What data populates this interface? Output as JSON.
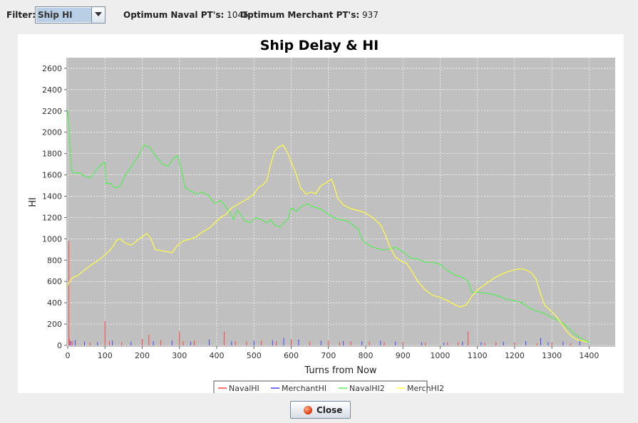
{
  "filter": {
    "label": "Filter:",
    "selected": "Ship HI"
  },
  "optimum": {
    "naval_label": "Optimum Naval PT's:",
    "naval_value": "1046",
    "merchant_label": "Optimum Merchant PT's:",
    "merchant_value": "937"
  },
  "close_button": {
    "label": "Close",
    "icon": "close-icon"
  },
  "chart_data": {
    "type": "line",
    "title": "Ship Delay & HI",
    "xlabel": "Turns from Now",
    "ylabel": "HI",
    "xlim": [
      0,
      1470
    ],
    "ylim": [
      0,
      2700
    ],
    "xticks": [
      0,
      100,
      200,
      300,
      400,
      500,
      600,
      700,
      800,
      900,
      1000,
      1100,
      1200,
      1300,
      1400
    ],
    "yticks": [
      0,
      200,
      400,
      600,
      800,
      1000,
      1200,
      1400,
      1600,
      1800,
      2000,
      2200,
      2400,
      2600
    ],
    "grid": true,
    "legend_position": "bottom",
    "plot_background": "#c0c0c0",
    "series": [
      {
        "name": "NavalHI",
        "color": "#ff4444",
        "spikes": [
          [
            3,
            980
          ],
          [
            5,
            60
          ],
          [
            12,
            40
          ],
          [
            60,
            30
          ],
          [
            100,
            230
          ],
          [
            112,
            40
          ],
          [
            145,
            30
          ],
          [
            200,
            60
          ],
          [
            218,
            100
          ],
          [
            250,
            50
          ],
          [
            300,
            130
          ],
          [
            310,
            40
          ],
          [
            340,
            45
          ],
          [
            420,
            130
          ],
          [
            450,
            40
          ],
          [
            480,
            35
          ],
          [
            520,
            45
          ],
          [
            560,
            40
          ],
          [
            600,
            55
          ],
          [
            650,
            35
          ],
          [
            700,
            45
          ],
          [
            730,
            30
          ],
          [
            760,
            40
          ],
          [
            810,
            35
          ],
          [
            850,
            30
          ],
          [
            900,
            30
          ],
          [
            960,
            25
          ],
          [
            1020,
            30
          ],
          [
            1048,
            30
          ],
          [
            1075,
            130
          ],
          [
            1120,
            25
          ],
          [
            1150,
            30
          ],
          [
            1200,
            25
          ],
          [
            1260,
            20
          ],
          [
            1300,
            25
          ],
          [
            1350,
            20
          ]
        ]
      },
      {
        "name": "MerchantHI",
        "color": "#4444ff",
        "spikes": [
          [
            8,
            40
          ],
          [
            20,
            50
          ],
          [
            45,
            35
          ],
          [
            80,
            30
          ],
          [
            120,
            45
          ],
          [
            170,
            35
          ],
          [
            230,
            40
          ],
          [
            280,
            45
          ],
          [
            330,
            35
          ],
          [
            380,
            55
          ],
          [
            440,
            40
          ],
          [
            500,
            45
          ],
          [
            550,
            50
          ],
          [
            580,
            70
          ],
          [
            620,
            55
          ],
          [
            680,
            45
          ],
          [
            740,
            40
          ],
          [
            790,
            40
          ],
          [
            840,
            45
          ],
          [
            880,
            35
          ],
          [
            950,
            30
          ],
          [
            1010,
            25
          ],
          [
            1060,
            35
          ],
          [
            1110,
            30
          ],
          [
            1170,
            35
          ],
          [
            1230,
            40
          ],
          [
            1270,
            70
          ],
          [
            1290,
            30
          ],
          [
            1330,
            35
          ],
          [
            1375,
            45
          ]
        ]
      },
      {
        "name": "NavalHI2",
        "color": "#55ee55",
        "points": [
          [
            0,
            2200
          ],
          [
            5,
            1900
          ],
          [
            10,
            1650
          ],
          [
            15,
            1620
          ],
          [
            30,
            1620
          ],
          [
            45,
            1590
          ],
          [
            60,
            1570
          ],
          [
            75,
            1640
          ],
          [
            90,
            1700
          ],
          [
            100,
            1720
          ],
          [
            103,
            1520
          ],
          [
            115,
            1520
          ],
          [
            125,
            1480
          ],
          [
            140,
            1490
          ],
          [
            155,
            1600
          ],
          [
            175,
            1700
          ],
          [
            190,
            1780
          ],
          [
            205,
            1880
          ],
          [
            220,
            1860
          ],
          [
            240,
            1760
          ],
          [
            255,
            1700
          ],
          [
            270,
            1680
          ],
          [
            285,
            1760
          ],
          [
            295,
            1780
          ],
          [
            305,
            1650
          ],
          [
            315,
            1480
          ],
          [
            330,
            1450
          ],
          [
            345,
            1420
          ],
          [
            360,
            1440
          ],
          [
            380,
            1400
          ],
          [
            395,
            1330
          ],
          [
            410,
            1360
          ],
          [
            420,
            1320
          ],
          [
            435,
            1250
          ],
          [
            445,
            1180
          ],
          [
            455,
            1270
          ],
          [
            465,
            1230
          ],
          [
            475,
            1170
          ],
          [
            490,
            1150
          ],
          [
            505,
            1200
          ],
          [
            520,
            1180
          ],
          [
            535,
            1150
          ],
          [
            545,
            1180
          ],
          [
            555,
            1130
          ],
          [
            570,
            1110
          ],
          [
            580,
            1150
          ],
          [
            592,
            1190
          ],
          [
            600,
            1290
          ],
          [
            615,
            1260
          ],
          [
            630,
            1310
          ],
          [
            645,
            1330
          ],
          [
            660,
            1300
          ],
          [
            680,
            1280
          ],
          [
            700,
            1230
          ],
          [
            715,
            1200
          ],
          [
            730,
            1180
          ],
          [
            750,
            1170
          ],
          [
            765,
            1130
          ],
          [
            780,
            1090
          ],
          [
            790,
            1000
          ],
          [
            800,
            960
          ],
          [
            820,
            920
          ],
          [
            840,
            900
          ],
          [
            860,
            900
          ],
          [
            880,
            920
          ],
          [
            900,
            880
          ],
          [
            920,
            820
          ],
          [
            940,
            810
          ],
          [
            960,
            780
          ],
          [
            980,
            780
          ],
          [
            1000,
            760
          ],
          [
            1020,
            700
          ],
          [
            1040,
            660
          ],
          [
            1060,
            640
          ],
          [
            1075,
            600
          ],
          [
            1085,
            500
          ],
          [
            1100,
            500
          ],
          [
            1120,
            490
          ],
          [
            1140,
            480
          ],
          [
            1160,
            460
          ],
          [
            1180,
            430
          ],
          [
            1200,
            420
          ],
          [
            1220,
            400
          ],
          [
            1240,
            350
          ],
          [
            1260,
            320
          ],
          [
            1280,
            300
          ],
          [
            1300,
            260
          ],
          [
            1320,
            230
          ],
          [
            1340,
            180
          ],
          [
            1360,
            110
          ],
          [
            1380,
            60
          ],
          [
            1400,
            30
          ]
        ]
      },
      {
        "name": "MerchHI2",
        "color": "#ffff44",
        "points": [
          [
            0,
            560
          ],
          [
            5,
            600
          ],
          [
            15,
            640
          ],
          [
            25,
            650
          ],
          [
            35,
            680
          ],
          [
            50,
            720
          ],
          [
            65,
            760
          ],
          [
            75,
            780
          ],
          [
            90,
            820
          ],
          [
            100,
            850
          ],
          [
            110,
            880
          ],
          [
            120,
            920
          ],
          [
            130,
            980
          ],
          [
            140,
            1000
          ],
          [
            155,
            960
          ],
          [
            170,
            940
          ],
          [
            185,
            980
          ],
          [
            200,
            1020
          ],
          [
            212,
            1050
          ],
          [
            222,
            1010
          ],
          [
            235,
            900
          ],
          [
            250,
            890
          ],
          [
            265,
            880
          ],
          [
            280,
            870
          ],
          [
            295,
            940
          ],
          [
            310,
            980
          ],
          [
            330,
            1000
          ],
          [
            345,
            1020
          ],
          [
            360,
            1060
          ],
          [
            380,
            1100
          ],
          [
            395,
            1150
          ],
          [
            410,
            1200
          ],
          [
            425,
            1230
          ],
          [
            440,
            1290
          ],
          [
            455,
            1320
          ],
          [
            470,
            1350
          ],
          [
            485,
            1380
          ],
          [
            500,
            1420
          ],
          [
            512,
            1480
          ],
          [
            525,
            1510
          ],
          [
            535,
            1550
          ],
          [
            545,
            1700
          ],
          [
            555,
            1820
          ],
          [
            565,
            1860
          ],
          [
            578,
            1880
          ],
          [
            590,
            1810
          ],
          [
            600,
            1720
          ],
          [
            612,
            1620
          ],
          [
            625,
            1480
          ],
          [
            640,
            1420
          ],
          [
            655,
            1440
          ],
          [
            665,
            1420
          ],
          [
            680,
            1500
          ],
          [
            695,
            1530
          ],
          [
            708,
            1560
          ],
          [
            715,
            1500
          ],
          [
            725,
            1380
          ],
          [
            740,
            1320
          ],
          [
            755,
            1290
          ],
          [
            775,
            1270
          ],
          [
            795,
            1250
          ],
          [
            810,
            1220
          ],
          [
            825,
            1180
          ],
          [
            840,
            1130
          ],
          [
            855,
            1020
          ],
          [
            865,
            920
          ],
          [
            880,
            830
          ],
          [
            895,
            790
          ],
          [
            910,
            770
          ],
          [
            925,
            690
          ],
          [
            940,
            600
          ],
          [
            960,
            520
          ],
          [
            980,
            470
          ],
          [
            1000,
            450
          ],
          [
            1020,
            420
          ],
          [
            1040,
            380
          ],
          [
            1055,
            360
          ],
          [
            1070,
            380
          ],
          [
            1085,
            460
          ],
          [
            1100,
            520
          ],
          [
            1120,
            570
          ],
          [
            1140,
            620
          ],
          [
            1160,
            660
          ],
          [
            1180,
            690
          ],
          [
            1200,
            710
          ],
          [
            1215,
            720
          ],
          [
            1230,
            710
          ],
          [
            1245,
            680
          ],
          [
            1258,
            620
          ],
          [
            1268,
            500
          ],
          [
            1280,
            380
          ],
          [
            1295,
            330
          ],
          [
            1310,
            280
          ],
          [
            1325,
            210
          ],
          [
            1340,
            130
          ],
          [
            1355,
            80
          ],
          [
            1370,
            50
          ],
          [
            1385,
            40
          ],
          [
            1395,
            30
          ]
        ]
      }
    ]
  }
}
